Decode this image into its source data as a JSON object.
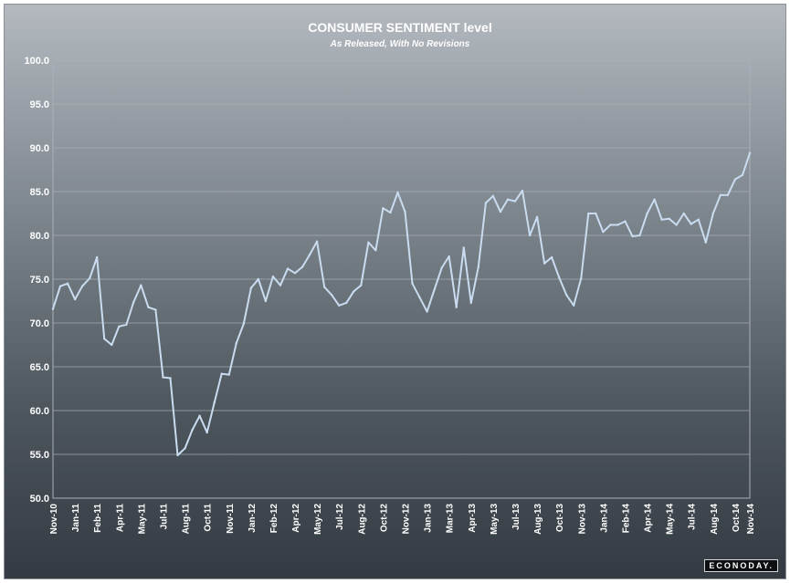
{
  "chart_data": {
    "type": "line",
    "title": "CONSUMER SENTIMENT level",
    "subtitle": "As Released, With No Revisions",
    "ylim": [
      50,
      100
    ],
    "yticks": [
      "100.0",
      "95.0",
      "90.0",
      "85.0",
      "80.0",
      "75.0",
      "70.0",
      "65.0",
      "60.0",
      "55.0",
      "50.0"
    ],
    "xtick_labels": [
      "Nov-10",
      "Jan-11",
      "Feb-11",
      "Apr-11",
      "May-11",
      "Jul-11",
      "Aug-11",
      "Oct-11",
      "Nov-11",
      "Jan-12",
      "Feb-12",
      "Apr-12",
      "May-12",
      "Jul-12",
      "Aug-12",
      "Oct-12",
      "Nov-12",
      "Jan-13",
      "Mar-13",
      "Apr-13",
      "May-13",
      "Jul-13",
      "Aug-13",
      "Oct-13",
      "Nov-13",
      "Jan-14",
      "Feb-14",
      "Apr-14",
      "May-14",
      "Jul-14",
      "Aug-14",
      "Oct-14",
      "Nov-14"
    ],
    "grid": true,
    "line_color": "#c9dcf0",
    "values": [
      71.6,
      74.2,
      74.5,
      72.7,
      74.2,
      75.1,
      77.5,
      68.2,
      67.5,
      69.6,
      69.8,
      72.4,
      74.3,
      71.8,
      71.5,
      63.8,
      63.7,
      54.9,
      55.7,
      57.8,
      59.4,
      57.5,
      60.9,
      64.2,
      64.1,
      67.7,
      69.9,
      74.0,
      75.0,
      72.5,
      75.3,
      74.3,
      76.2,
      75.7,
      76.4,
      77.8,
      79.3,
      74.1,
      73.2,
      72.0,
      72.3,
      73.6,
      74.3,
      79.2,
      78.3,
      83.1,
      82.6,
      84.9,
      82.7,
      74.5,
      72.9,
      71.3,
      73.8,
      76.3,
      77.6,
      71.8,
      78.6,
      72.3,
      76.4,
      83.7,
      84.5,
      82.7,
      84.1,
      83.9,
      85.1,
      80.0,
      82.1,
      76.8,
      77.5,
      75.2,
      73.2,
      72.0,
      75.1,
      82.5,
      82.5,
      80.4,
      81.2,
      81.2,
      81.6,
      79.9,
      80.0,
      82.5,
      84.1,
      81.8,
      81.9,
      81.2,
      82.5,
      81.3,
      81.8,
      79.2,
      82.5,
      84.6,
      84.6,
      86.4,
      86.9,
      89.4
    ]
  },
  "branding": {
    "logo_text": "ECONODAY."
  }
}
